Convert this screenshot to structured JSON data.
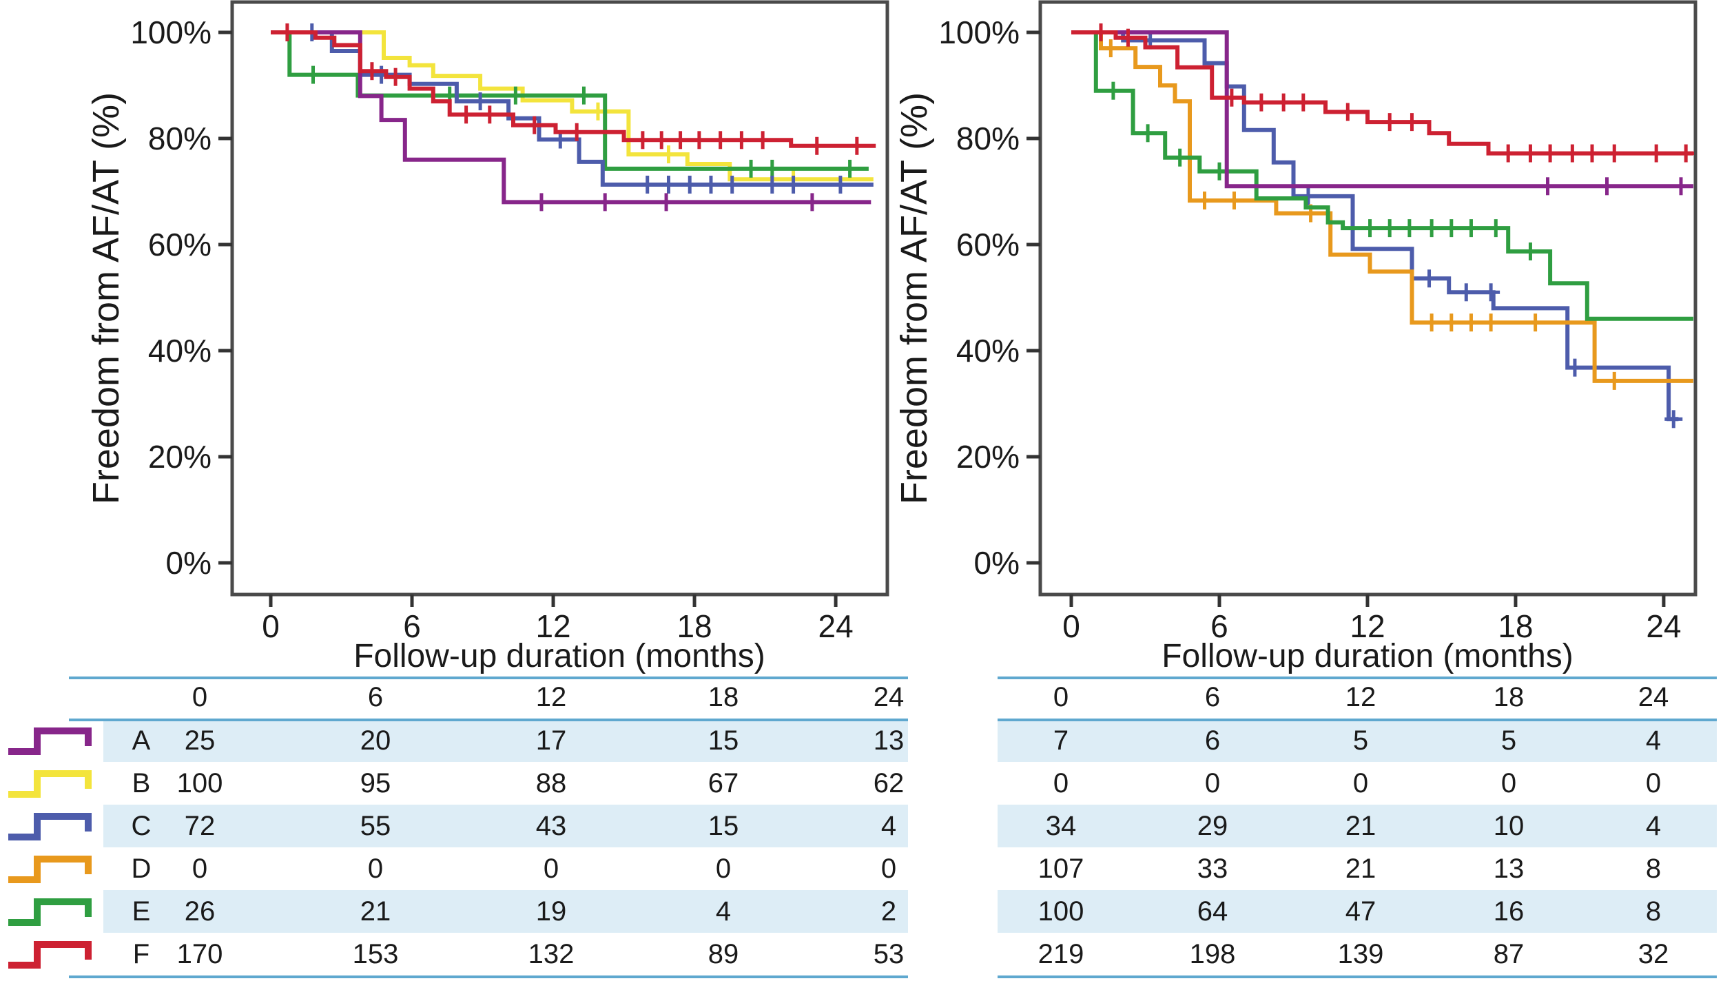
{
  "figure": {
    "xlabel": "Follow-up duration (months)",
    "ylabel": "Freedom from AF/AT (%)"
  },
  "chart_data": {
    "type": "line",
    "subtype": "kaplan-meier-step",
    "legend_position": "left-table-rows",
    "grid": false,
    "panels": [
      {
        "name": "left-panel",
        "xlabel": "Follow-up duration (months)",
        "ylabel": "Freedom from AF/AT (%)",
        "xticks": [
          0,
          6,
          12,
          18,
          24
        ],
        "yticks": [
          100,
          80,
          60,
          40,
          20,
          0
        ],
        "ytick_suffix": "%",
        "xlim": [
          0,
          25.7
        ],
        "ylim": [
          0,
          105
        ],
        "series": [
          {
            "name": "B",
            "color": "#f3e43c",
            "steps": [
              [
                0,
                100
              ],
              [
                4.8,
                95.2
              ],
              [
                5.9,
                93.8
              ],
              [
                6.9,
                91.8
              ],
              [
                8.9,
                89.4
              ],
              [
                10.7,
                87.2
              ],
              [
                12.8,
                85.1
              ],
              [
                15.2,
                77
              ],
              [
                17.7,
                75.2
              ],
              [
                19.5,
                72.3
              ],
              [
                25.6,
                72.3
              ]
            ],
            "censors": [
              13.9,
              16.9,
              22.2
            ]
          },
          {
            "name": "E",
            "color": "#2f9e41",
            "steps": [
              [
                0,
                100
              ],
              [
                0.8,
                92
              ],
              [
                3.7,
                88.1
              ],
              [
                14.2,
                74.3
              ],
              [
                25.4,
                74.3
              ]
            ],
            "censors": [
              1.8,
              7.6,
              10.4,
              13.3,
              20.4,
              21.3,
              24.6
            ]
          },
          {
            "name": "C",
            "color": "#4d5cab",
            "steps": [
              [
                0,
                100
              ],
              [
                2.6,
                96.5
              ],
              [
                3.8,
                92
              ],
              [
                5.9,
                90.3
              ],
              [
                7.9,
                87
              ],
              [
                10.1,
                83.8
              ],
              [
                11.4,
                79.8
              ],
              [
                13.1,
                75.6
              ],
              [
                14.1,
                71.3
              ],
              [
                25.6,
                71.3
              ]
            ],
            "censors": [
              1.75,
              4.7,
              8.9,
              12.3,
              16,
              16.9,
              17.8,
              18.7,
              19.6,
              21.3,
              22.2,
              24.2
            ]
          },
          {
            "name": "A",
            "color": "#87268a",
            "steps": [
              [
                0,
                100
              ],
              [
                3.8,
                88
              ],
              [
                4.7,
                83.5
              ],
              [
                5.7,
                76
              ],
              [
                9.9,
                68
              ],
              [
                25.5,
                68
              ]
            ],
            "censors": [
              11.5,
              14.2,
              16.8,
              23
            ]
          },
          {
            "name": "F",
            "color": "#cd2132",
            "steps": [
              [
                0,
                100
              ],
              [
                1.9,
                99
              ],
              [
                2.7,
                97.6
              ],
              [
                3.8,
                92.7
              ],
              [
                4.9,
                91.6
              ],
              [
                5.9,
                89.4
              ],
              [
                6.9,
                87
              ],
              [
                7.6,
                84.5
              ],
              [
                10.3,
                82.5
              ],
              [
                12.1,
                81.2
              ],
              [
                15,
                79.7
              ],
              [
                22.1,
                78.6
              ],
              [
                25.7,
                78.6
              ]
            ],
            "censors": [
              0.7,
              4.3,
              5.3,
              8.3,
              9.3,
              11.2,
              13,
              15.8,
              16.6,
              17.4,
              18.2,
              19.1,
              20,
              20.9,
              23.2,
              24.9
            ]
          }
        ]
      },
      {
        "name": "right-panel",
        "xlabel": "Follow-up duration (months)",
        "ylabel": "Freedom from AF/AT (%)",
        "xticks": [
          0,
          6,
          12,
          18,
          24
        ],
        "yticks": [
          100,
          80,
          60,
          40,
          20,
          0
        ],
        "ytick_suffix": "%",
        "xlim": [
          0,
          25.2
        ],
        "ylim": [
          0,
          105
        ],
        "series": [
          {
            "name": "C",
            "color": "#4d5cab",
            "steps": [
              [
                0,
                100
              ],
              [
                2.1,
                98.5
              ],
              [
                5.4,
                94.2
              ],
              [
                6.3,
                89.8
              ],
              [
                7,
                81.6
              ],
              [
                8.2,
                75.5
              ],
              [
                9,
                69.1
              ],
              [
                11.4,
                59.2
              ],
              [
                13.8,
                53.6
              ],
              [
                15.3,
                51
              ],
              [
                17.1,
                48
              ],
              [
                20.1,
                36.8
              ],
              [
                24.2,
                27.1
              ],
              [
                24.6,
                27.1
              ]
            ],
            "censors": [
              3.2,
              9.6,
              14.5,
              16,
              17,
              20.4,
              24.4
            ]
          },
          {
            "name": "D",
            "color": "#e8991d",
            "steps": [
              [
                0,
                100
              ],
              [
                1.2,
                97
              ],
              [
                2.6,
                93.5
              ],
              [
                3.6,
                90
              ],
              [
                4.2,
                87
              ],
              [
                4.8,
                68.3
              ],
              [
                8.3,
                65.9
              ],
              [
                10.5,
                58.1
              ],
              [
                12.1,
                54.9
              ],
              [
                13.8,
                45.3
              ],
              [
                21.2,
                34.3
              ],
              [
                25.2,
                34.3
              ]
            ],
            "censors": [
              1.6,
              5.4,
              6.6,
              9.7,
              14.6,
              15.4,
              16.2,
              17,
              18.8,
              22
            ]
          },
          {
            "name": "E",
            "color": "#2f9e41",
            "steps": [
              [
                0,
                100
              ],
              [
                1,
                89
              ],
              [
                2.5,
                81
              ],
              [
                3.8,
                76.4
              ],
              [
                5.2,
                73.8
              ],
              [
                7.5,
                68.7
              ],
              [
                9.5,
                67
              ],
              [
                10.4,
                64.2
              ],
              [
                11,
                63.1
              ],
              [
                17.7,
                58.7
              ],
              [
                19.4,
                52.7
              ],
              [
                20.9,
                46
              ],
              [
                25.2,
                46
              ]
            ],
            "censors": [
              1.7,
              3.1,
              4.4,
              6,
              12.1,
              12.9,
              13.7,
              14.6,
              15.4,
              16.2,
              17.2,
              18.6
            ]
          },
          {
            "name": "A",
            "color": "#87268a",
            "steps": [
              [
                0,
                100
              ],
              [
                6.3,
                71
              ],
              [
                25.2,
                71
              ]
            ],
            "censors": [
              19.3,
              21.7,
              24.7
            ]
          },
          {
            "name": "F",
            "color": "#cd2132",
            "steps": [
              [
                0,
                100
              ],
              [
                1.8,
                99
              ],
              [
                3,
                97.2
              ],
              [
                4.3,
                93.4
              ],
              [
                5.7,
                87.7
              ],
              [
                7,
                86.8
              ],
              [
                10.3,
                85
              ],
              [
                12,
                83.1
              ],
              [
                14.5,
                81
              ],
              [
                15.3,
                79
              ],
              [
                16.9,
                77.2
              ],
              [
                25.2,
                77.2
              ]
            ],
            "censors": [
              1.2,
              2.3,
              6.5,
              7.7,
              8.6,
              9.4,
              11.2,
              12.9,
              13.8,
              17.7,
              18.6,
              19.4,
              20.3,
              21.1,
              22,
              23.7,
              24.9
            ]
          }
        ]
      }
    ]
  },
  "risk_tables": {
    "left": {
      "columns": [
        "0",
        "6",
        "12",
        "18",
        "24"
      ],
      "rows": [
        {
          "label": "A",
          "color": "#87268a",
          "values": [
            "25",
            "20",
            "17",
            "15",
            "13"
          ],
          "shaded": true
        },
        {
          "label": "B",
          "color": "#f3e43c",
          "values": [
            "100",
            "95",
            "88",
            "67",
            "62"
          ],
          "shaded": false
        },
        {
          "label": "C",
          "color": "#4d5cab",
          "values": [
            "72",
            "55",
            "43",
            "15",
            "4"
          ],
          "shaded": true
        },
        {
          "label": "D",
          "color": "#e8991d",
          "values": [
            "0",
            "0",
            "0",
            "0",
            "0"
          ],
          "shaded": false
        },
        {
          "label": "E",
          "color": "#2f9e41",
          "values": [
            "26",
            "21",
            "19",
            "4",
            "2"
          ],
          "shaded": true
        },
        {
          "label": "F",
          "color": "#cd2132",
          "values": [
            "170",
            "153",
            "132",
            "89",
            "53"
          ],
          "shaded": false
        }
      ]
    },
    "right": {
      "columns": [
        "0",
        "6",
        "12",
        "18",
        "24"
      ],
      "rows": [
        {
          "values": [
            "7",
            "6",
            "5",
            "5",
            "4"
          ],
          "shaded": true
        },
        {
          "values": [
            "0",
            "0",
            "0",
            "0",
            "0"
          ],
          "shaded": false
        },
        {
          "values": [
            "34",
            "29",
            "21",
            "10",
            "4"
          ],
          "shaded": true
        },
        {
          "values": [
            "107",
            "33",
            "21",
            "13",
            "8"
          ],
          "shaded": false
        },
        {
          "values": [
            "100",
            "64",
            "47",
            "16",
            "8"
          ],
          "shaded": true
        },
        {
          "values": [
            "219",
            "198",
            "139",
            "87",
            "32"
          ],
          "shaded": false
        }
      ]
    }
  },
  "colors": {
    "frame": "#4a4a4a",
    "tick": "#333333",
    "rule": "#5fa8cf",
    "band": "#ddedf6",
    "text": "#1a1a1a",
    "background": "#ffffff"
  }
}
